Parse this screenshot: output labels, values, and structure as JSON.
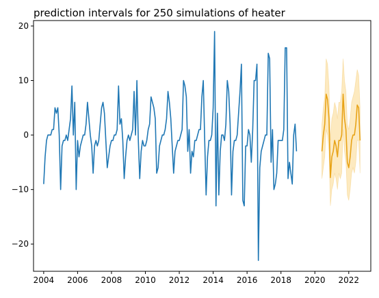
{
  "chart_data": {
    "type": "line",
    "title": "prediction intervals for 250 simulations of heater",
    "xlabel": "",
    "ylabel": "",
    "xlim": [
      2003.4,
      2023.3
    ],
    "ylim": [
      -25,
      21
    ],
    "x_ticks": [
      2004,
      2006,
      2008,
      2010,
      2012,
      2014,
      2016,
      2018,
      2020,
      2022
    ],
    "x_tick_labels": [
      "2004",
      "2006",
      "2008",
      "2010",
      "2012",
      "2014",
      "2016",
      "2018",
      "2020",
      "2022"
    ],
    "y_ticks": [
      -20,
      -10,
      0,
      10,
      20
    ],
    "y_tick_labels": [
      "−20",
      "−10",
      "0",
      "10",
      "20"
    ],
    "grid": false,
    "colors": {
      "history": "#1f77b4",
      "forecast": "#e8a317",
      "interval": "#fde6b5"
    },
    "series": [
      {
        "role": "history",
        "start_year": 2004,
        "start_month": 1,
        "values": [
          -9,
          -4,
          -1,
          0,
          0,
          0,
          1,
          1,
          5,
          4,
          5,
          0,
          -10,
          -2,
          -1,
          -1,
          0,
          -1,
          1,
          3,
          9,
          0,
          6,
          -10,
          -1,
          -4,
          -2,
          -1,
          0,
          0,
          2,
          6,
          3,
          0,
          -2,
          -7,
          -2,
          -1,
          -2,
          -1,
          2,
          5,
          6,
          4,
          -1,
          -6,
          -4,
          -2,
          -1,
          -1,
          0,
          0,
          1,
          9,
          2,
          3,
          -1,
          -8,
          -4,
          -1,
          0,
          -1,
          0,
          1,
          8,
          0,
          10,
          -1,
          -8,
          -3,
          -1,
          -2,
          -2,
          -1,
          1,
          2,
          7,
          6,
          5,
          3,
          -7,
          -6,
          -2,
          -1,
          0,
          0,
          1,
          3,
          8,
          6,
          3,
          -2,
          -7,
          -3,
          -2,
          -1,
          -1,
          0,
          1,
          10,
          9,
          7,
          -3,
          1,
          -7,
          -3,
          -4,
          -1,
          -1,
          0,
          1,
          1,
          7,
          10,
          -1,
          -11,
          -4,
          -1,
          -1,
          0,
          5,
          19,
          -13,
          4,
          -11,
          -3,
          0,
          0,
          -1,
          2,
          10,
          8,
          2,
          -11,
          -3,
          -1,
          -1,
          0,
          4,
          8,
          13,
          -12,
          -13,
          -2,
          -2,
          1,
          0,
          -5,
          1,
          10,
          10,
          13,
          -23,
          -6,
          -3,
          -2,
          -1,
          0,
          0,
          15,
          14,
          -5,
          1,
          -10,
          -9,
          -7,
          -1,
          -1,
          -1,
          -1,
          1,
          16,
          16,
          -8,
          -5,
          -7,
          -9,
          0,
          2,
          -3
        ]
      },
      {
        "role": "forecast",
        "start_year": 2020,
        "start_month": 6,
        "values": [
          -3,
          0,
          2,
          7.5,
          6.5,
          3,
          -7.8,
          -4,
          -3,
          -1,
          -2,
          -4,
          -1,
          -1,
          0,
          7.5,
          3,
          1,
          -5,
          -6,
          -4,
          -1,
          0,
          0,
          2,
          5.5,
          5,
          -1
        ],
        "upper": [
          2,
          5,
          7,
          14,
          13,
          9,
          -1,
          3,
          4,
          6,
          5,
          3,
          6,
          6,
          8,
          14,
          10,
          8,
          2,
          1,
          3,
          6,
          7,
          8,
          10,
          12,
          11,
          5
        ],
        "lower": [
          -8,
          -6,
          -4,
          1,
          0,
          -3,
          -13,
          -10,
          -9,
          -7,
          -8,
          -10,
          -7,
          -8,
          -7,
          1,
          -3,
          -5,
          -11,
          -12,
          -10,
          -7,
          -6,
          -7,
          -5,
          -1,
          -1,
          -7
        ]
      }
    ]
  }
}
